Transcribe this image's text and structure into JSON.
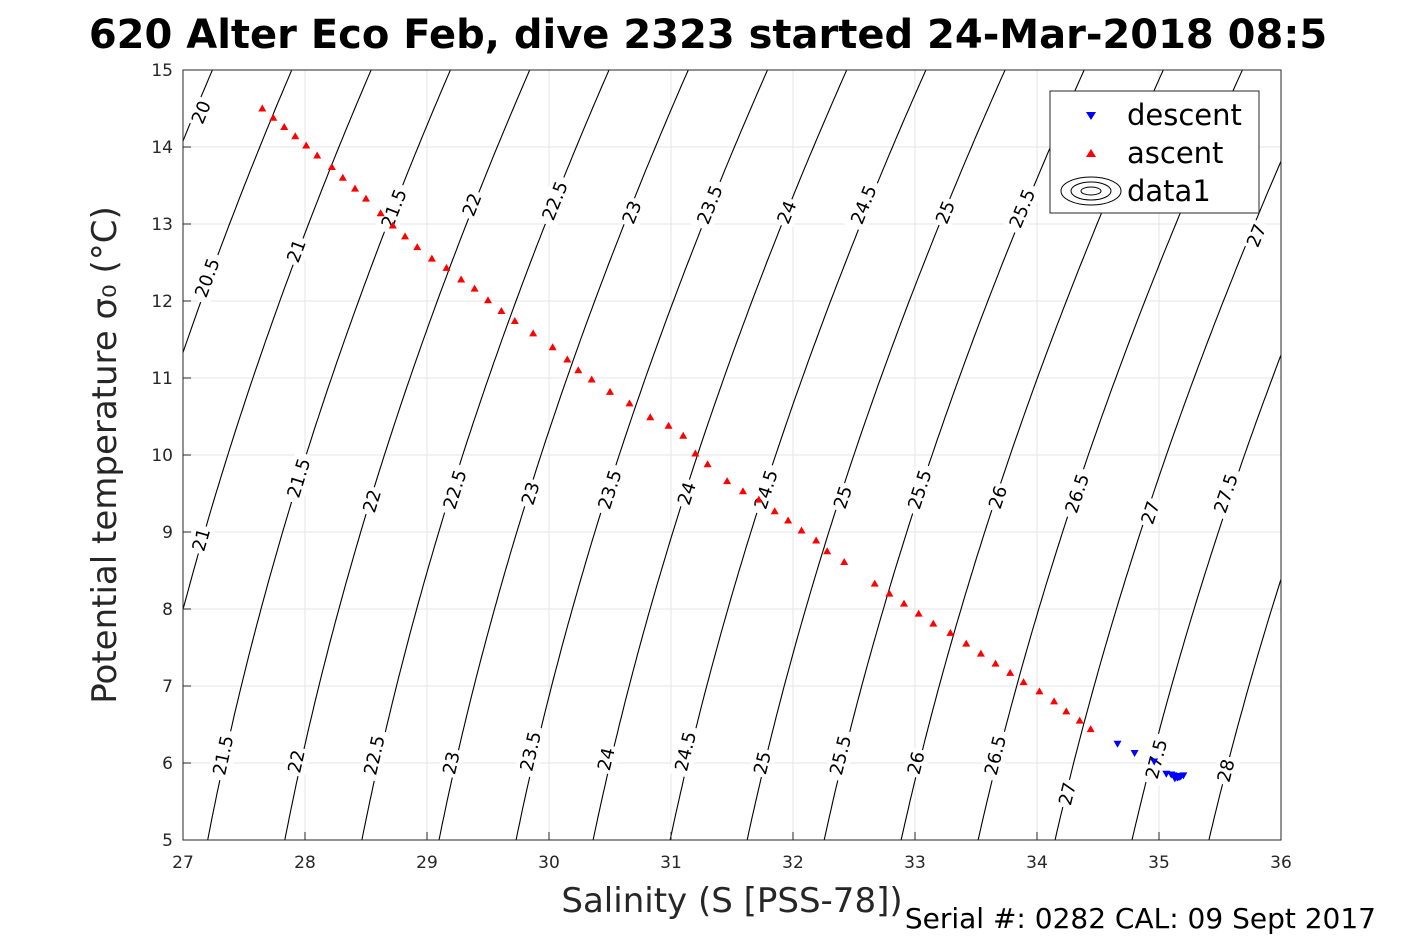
{
  "title": "620 Alter Eco Feb, dive 2323 started 24-Mar-2018 08:5",
  "footer": "Serial #: 0282  CAL: 09 Sept 2017",
  "chart_data": {
    "type": "scatter",
    "xlabel": "Salinity (S [PSS-78])",
    "ylabel": "Potential temperature σ₀ (°C)",
    "xlim": [
      27,
      36
    ],
    "ylim": [
      5,
      15
    ],
    "x_ticks": [
      "27",
      "28",
      "29",
      "30",
      "31",
      "32",
      "33",
      "34",
      "35",
      "36"
    ],
    "y_ticks": [
      "5",
      "6",
      "7",
      "8",
      "9",
      "10",
      "11",
      "12",
      "13",
      "14",
      "15"
    ],
    "grid": true,
    "legend_position": "top-right",
    "legend": [
      "descent",
      "ascent",
      "data1"
    ],
    "series": [
      {
        "name": "descent",
        "marker": "triangle-down",
        "color": "#0000ff",
        "x": [
          34.66,
          34.8,
          34.96,
          35.06,
          35.1,
          35.12,
          35.14,
          35.16,
          35.18,
          35.2,
          35.13,
          35.15,
          35.17
        ],
        "y": [
          6.25,
          6.13,
          6.02,
          5.86,
          5.85,
          5.84,
          5.83,
          5.82,
          5.83,
          5.84,
          5.8,
          5.81,
          5.82
        ]
      },
      {
        "name": "ascent",
        "marker": "triangle-up",
        "color": "#ff0000",
        "x": [
          27.65,
          27.74,
          27.83,
          27.92,
          28.01,
          28.1,
          28.22,
          28.31,
          28.41,
          28.5,
          28.62,
          28.72,
          28.82,
          28.92,
          29.04,
          29.16,
          29.28,
          29.39,
          29.5,
          29.61,
          29.72,
          29.87,
          30.03,
          30.15,
          30.24,
          30.35,
          30.5,
          30.66,
          30.83,
          30.98,
          31.1,
          31.2,
          31.3,
          31.46,
          31.59,
          31.72,
          31.85,
          31.96,
          32.07,
          32.19,
          32.28,
          32.42,
          32.67,
          32.79,
          32.91,
          33.03,
          33.15,
          33.29,
          33.42,
          33.54,
          33.66,
          33.78,
          33.89,
          34.02,
          34.14,
          34.24,
          34.35,
          34.44
        ],
        "y": [
          14.5,
          14.38,
          14.26,
          14.14,
          14.02,
          13.89,
          13.74,
          13.6,
          13.46,
          13.33,
          13.14,
          12.98,
          12.84,
          12.7,
          12.55,
          12.43,
          12.28,
          12.16,
          12.01,
          11.87,
          11.74,
          11.58,
          11.4,
          11.24,
          11.1,
          10.98,
          10.82,
          10.67,
          10.49,
          10.38,
          10.25,
          10.02,
          9.88,
          9.66,
          9.53,
          9.42,
          9.27,
          9.15,
          9.02,
          8.89,
          8.75,
          8.61,
          8.33,
          8.2,
          8.07,
          7.94,
          7.81,
          7.69,
          7.55,
          7.42,
          7.29,
          7.17,
          7.05,
          6.93,
          6.8,
          6.67,
          6.55,
          6.44
        ]
      }
    ],
    "contours": {
      "series_name": "data1",
      "color": "#000000",
      "levels": [
        20,
        20.5,
        21,
        21.5,
        22,
        22.5,
        23,
        23.5,
        24,
        24.5,
        25,
        25.5,
        26,
        26.5,
        27,
        27.5,
        28
      ],
      "labels": [
        {
          "text": "20",
          "s": 27.15,
          "t": 14.45
        },
        {
          "text": "20.5",
          "s": 27.2,
          "t": 12.3
        },
        {
          "text": "21",
          "s": 27.15,
          "t": 8.9
        },
        {
          "text": "21",
          "s": 27.93,
          "t": 12.65
        },
        {
          "text": "21.5",
          "s": 27.33,
          "t": 6.1
        },
        {
          "text": "21.5",
          "s": 27.95,
          "t": 9.7
        },
        {
          "text": "21.5",
          "s": 28.73,
          "t": 13.2
        },
        {
          "text": "22",
          "s": 27.93,
          "t": 6.02
        },
        {
          "text": "22",
          "s": 28.55,
          "t": 9.4
        },
        {
          "text": "22",
          "s": 29.37,
          "t": 13.25
        },
        {
          "text": "22.5",
          "s": 28.57,
          "t": 6.1
        },
        {
          "text": "22.5",
          "s": 29.23,
          "t": 9.55
        },
        {
          "text": "22.5",
          "s": 30.05,
          "t": 13.3
        },
        {
          "text": "23",
          "s": 29.2,
          "t": 6.0
        },
        {
          "text": "23",
          "s": 29.85,
          "t": 9.5
        },
        {
          "text": "23",
          "s": 30.68,
          "t": 13.15
        },
        {
          "text": "23.5",
          "s": 29.85,
          "t": 6.15
        },
        {
          "text": "23.5",
          "s": 30.5,
          "t": 9.55
        },
        {
          "text": "23.5",
          "s": 31.32,
          "t": 13.25
        },
        {
          "text": "24",
          "s": 30.47,
          "t": 6.05
        },
        {
          "text": "24",
          "s": 31.13,
          "t": 9.5
        },
        {
          "text": "24",
          "s": 31.95,
          "t": 13.15
        },
        {
          "text": "24.5",
          "s": 31.12,
          "t": 6.15
        },
        {
          "text": "24.5",
          "s": 31.78,
          "t": 9.55
        },
        {
          "text": "24.5",
          "s": 32.58,
          "t": 13.25
        },
        {
          "text": "25",
          "s": 31.75,
          "t": 6.0
        },
        {
          "text": "25",
          "s": 32.41,
          "t": 9.45
        },
        {
          "text": "25",
          "s": 33.25,
          "t": 13.15
        },
        {
          "text": "25.5",
          "s": 32.39,
          "t": 6.1
        },
        {
          "text": "25.5",
          "s": 33.04,
          "t": 9.55
        },
        {
          "text": "25.5",
          "s": 33.88,
          "t": 13.2
        },
        {
          "text": "26",
          "s": 33.01,
          "t": 6.0
        },
        {
          "text": "26",
          "s": 33.68,
          "t": 9.45
        },
        {
          "text": "26.5",
          "s": 33.66,
          "t": 6.1
        },
        {
          "text": "26.5",
          "s": 34.33,
          "t": 9.5
        },
        {
          "text": "27",
          "s": 34.25,
          "t": 5.6
        },
        {
          "text": "27",
          "s": 34.93,
          "t": 9.25
        },
        {
          "text": "27",
          "s": 35.8,
          "t": 12.85
        },
        {
          "text": "27.5",
          "s": 34.98,
          "t": 6.05
        },
        {
          "text": "27.5",
          "s": 35.55,
          "t": 9.5
        },
        {
          "text": "28",
          "s": 35.55,
          "t": 5.9
        }
      ]
    }
  }
}
